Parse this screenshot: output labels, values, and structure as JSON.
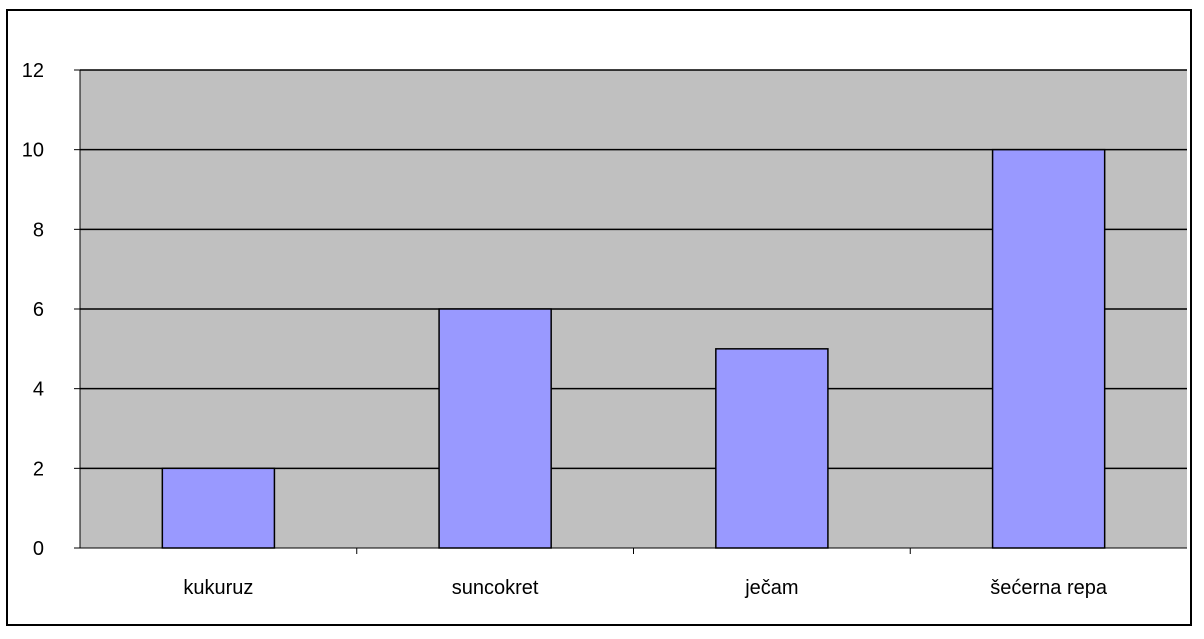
{
  "chart_data": {
    "type": "bar",
    "categories": [
      "kukuruz",
      "suncokret",
      "ječam",
      "šećerna repa"
    ],
    "values": [
      2,
      6,
      5,
      10
    ],
    "title": "",
    "xlabel": "",
    "ylabel": "",
    "ylim": [
      0,
      12
    ],
    "yticks": [
      "0",
      "2",
      "4",
      "6",
      "8",
      "10",
      "12"
    ],
    "grid": true,
    "legend": "none",
    "colors": {
      "plot_background": "#c0c0c0",
      "bar_fill": "#9999ff",
      "bar_stroke": "#000000",
      "grid": "#000000"
    }
  }
}
